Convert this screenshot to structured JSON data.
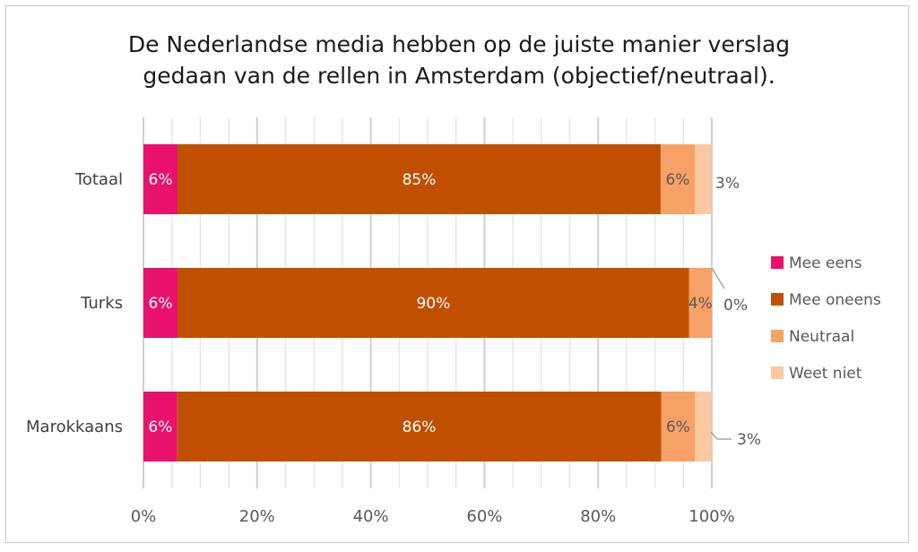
{
  "chart_data": {
    "type": "bar",
    "orientation": "horizontal",
    "stacked": true,
    "title_lines": [
      "De Nederlandse media hebben op de juiste manier verslag",
      "gedaan van de rellen in Amsterdam (objectief/neutraal)."
    ],
    "categories": [
      "Totaal",
      "Turks",
      "Marokkaans"
    ],
    "series": [
      {
        "name": "Mee eens",
        "color": "#e8116e",
        "values": [
          6,
          6,
          6
        ],
        "labels": [
          "6%",
          "6%",
          "6%"
        ]
      },
      {
        "name": "Mee oneens",
        "color": "#c05000",
        "values": [
          85,
          90,
          86
        ],
        "labels": [
          "85%",
          "90%",
          "86%"
        ]
      },
      {
        "name": "Neutraal",
        "color": "#f7a166",
        "values": [
          6,
          4,
          6
        ],
        "labels": [
          "6%",
          "4%",
          "6%"
        ]
      },
      {
        "name": "Weet niet",
        "color": "#fbc8a0",
        "values": [
          3,
          0,
          3
        ],
        "labels": [
          "3%",
          "0%",
          "3%"
        ]
      }
    ],
    "xlim": [
      0,
      100
    ],
    "xticks": [
      "0%",
      "20%",
      "40%",
      "60%",
      "80%",
      "100%"
    ],
    "grid": true,
    "legend_position": "right"
  }
}
